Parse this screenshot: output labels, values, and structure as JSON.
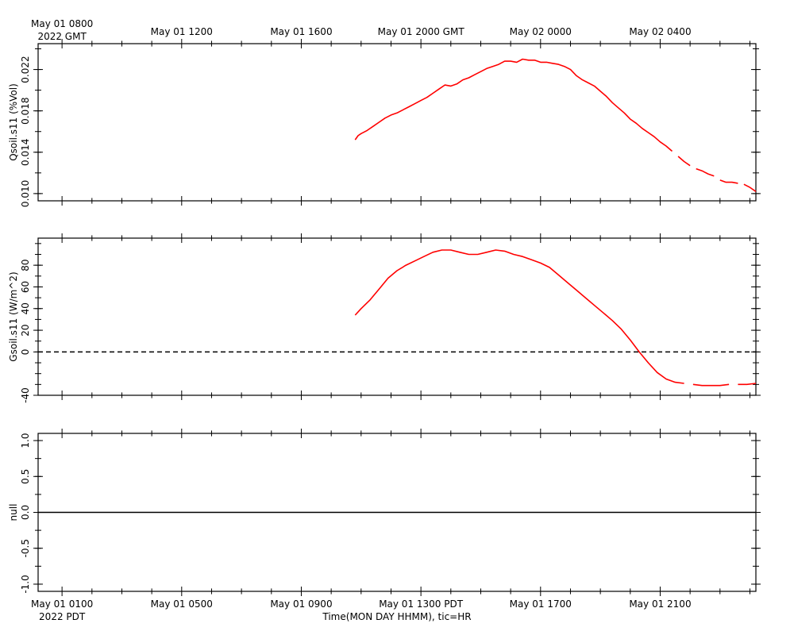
{
  "chart_data": {
    "type": "line",
    "time_axis": {
      "top_labels": [
        "May 01 0800",
        "May 01 1200",
        "May 01 1600",
        "May 01 2000 GMT",
        "May 02 0000",
        "May 02 0400"
      ],
      "top_year_label": "2022 GMT",
      "bottom_labels": [
        "May 01 0100",
        "May 01 0500",
        "May 01 0900",
        "May 01 1300 PDT",
        "May 01 1700",
        "May 01 2100"
      ],
      "bottom_year_label": "2022 PDT",
      "label_hours": [
        0,
        4,
        8,
        12,
        16,
        20
      ],
      "xlim_hours": [
        -0.8,
        23.2
      ],
      "xlabel": "Time(MON DAY HHMM), tic=HR"
    },
    "panels": [
      {
        "ylabel": "Qsoil.s11 (%Vol)",
        "ylim": [
          0.0093,
          0.0245
        ],
        "yticks": [
          0.01,
          0.014,
          0.018,
          0.022
        ],
        "ytick_labels": [
          "0.010",
          "0.014",
          "0.018",
          "0.022"
        ],
        "minor_step": 0.002,
        "color": "#ff0000",
        "reference_line": null,
        "series_x": [
          9.8,
          9.9,
          10.0,
          10.2,
          10.4,
          10.6,
          10.8,
          11.0,
          11.2,
          11.4,
          11.6,
          11.8,
          12.0,
          12.2,
          12.4,
          12.6,
          12.8,
          13.0,
          13.2,
          13.4,
          13.6,
          13.8,
          14.0,
          14.2,
          14.4,
          14.6,
          14.8,
          15.0,
          15.2,
          15.4,
          15.6,
          15.8,
          16.0,
          16.2,
          16.4,
          16.6,
          16.8,
          17.0,
          17.2,
          17.4,
          17.6,
          17.8,
          18.0,
          18.2,
          18.4,
          18.6,
          18.8,
          19.0,
          19.2,
          19.4,
          19.6,
          19.8,
          20.0,
          20.2,
          20.4,
          20.6,
          20.8,
          21.0,
          21.2,
          21.4,
          21.6,
          21.8,
          22.0,
          22.2,
          22.4,
          22.6,
          22.8,
          23.0,
          23.2
        ],
        "series_y": [
          0.0152,
          0.0156,
          0.0158,
          0.0161,
          0.0165,
          0.0169,
          0.0173,
          0.0176,
          0.0178,
          0.0181,
          0.0184,
          0.0187,
          0.019,
          0.0193,
          0.0197,
          0.0201,
          0.0205,
          0.0204,
          0.0206,
          0.021,
          0.0212,
          0.0215,
          0.0218,
          0.0221,
          0.0223,
          0.0225,
          0.0228,
          0.0228,
          0.0227,
          0.023,
          0.0229,
          0.0229,
          0.0227,
          0.0227,
          0.0226,
          0.0225,
          0.0223,
          0.022,
          0.0214,
          0.021,
          0.0207,
          0.0204,
          0.0199,
          0.0194,
          0.0188,
          0.0183,
          0.0178,
          0.0172,
          0.0168,
          0.0163,
          0.0159,
          0.0155,
          0.015,
          0.0146,
          0.0141,
          0.0136,
          0.0131,
          0.0127,
          0.0124,
          0.0122,
          0.0119,
          0.0117,
          0.0113,
          0.0111,
          0.0111,
          0.011,
          0.0109,
          0.0106,
          0.0102
        ],
        "gaps_after": [
          54,
          57,
          61,
          65
        ]
      },
      {
        "ylabel": "Gsoil.s11 (W/m^2)",
        "ylim": [
          -40,
          105
        ],
        "yticks": [
          -40,
          0,
          20,
          40,
          60,
          80
        ],
        "ytick_labels": [
          "-40",
          "0",
          "20",
          "40",
          "60",
          "80"
        ],
        "minor_step": 10,
        "color": "#ff0000",
        "reference_line": {
          "y": 0,
          "style": "dashed"
        },
        "series_x": [
          9.8,
          10.0,
          10.3,
          10.6,
          10.9,
          11.2,
          11.5,
          11.8,
          12.1,
          12.4,
          12.7,
          13.0,
          13.3,
          13.6,
          13.9,
          14.2,
          14.5,
          14.8,
          15.1,
          15.4,
          15.7,
          16.0,
          16.3,
          16.6,
          16.9,
          17.2,
          17.5,
          17.8,
          18.1,
          18.4,
          18.7,
          19.0,
          19.3,
          19.6,
          19.9,
          20.2,
          20.5,
          20.8,
          21.1,
          21.4,
          21.7,
          22.0,
          22.3,
          22.6,
          22.9,
          23.2
        ],
        "series_y": [
          34,
          40,
          48,
          58,
          68,
          75,
          80,
          84,
          88,
          92,
          94,
          94,
          92,
          90,
          90,
          92,
          94,
          93,
          90,
          88,
          85,
          82,
          78,
          71,
          64,
          57,
          50,
          43,
          36,
          29,
          21,
          11,
          0,
          -10,
          -19,
          -25,
          -28,
          -29,
          -30,
          -31,
          -31,
          -31,
          -30,
          -30,
          -30,
          -29
        ],
        "gaps_after": [
          37,
          42
        ]
      },
      {
        "ylabel": "null",
        "ylim": [
          -1.1,
          1.1
        ],
        "yticks": [
          -1.0,
          -0.5,
          0.0,
          0.5,
          1.0
        ],
        "ytick_labels": [
          "-1.0",
          "-0.5",
          "0.0",
          "0.5",
          "1.0"
        ],
        "minor_step": 0.25,
        "color": "#000000",
        "reference_line": {
          "y": 0,
          "style": "solid"
        },
        "series_x": [],
        "series_y": [],
        "gaps_after": []
      }
    ]
  }
}
